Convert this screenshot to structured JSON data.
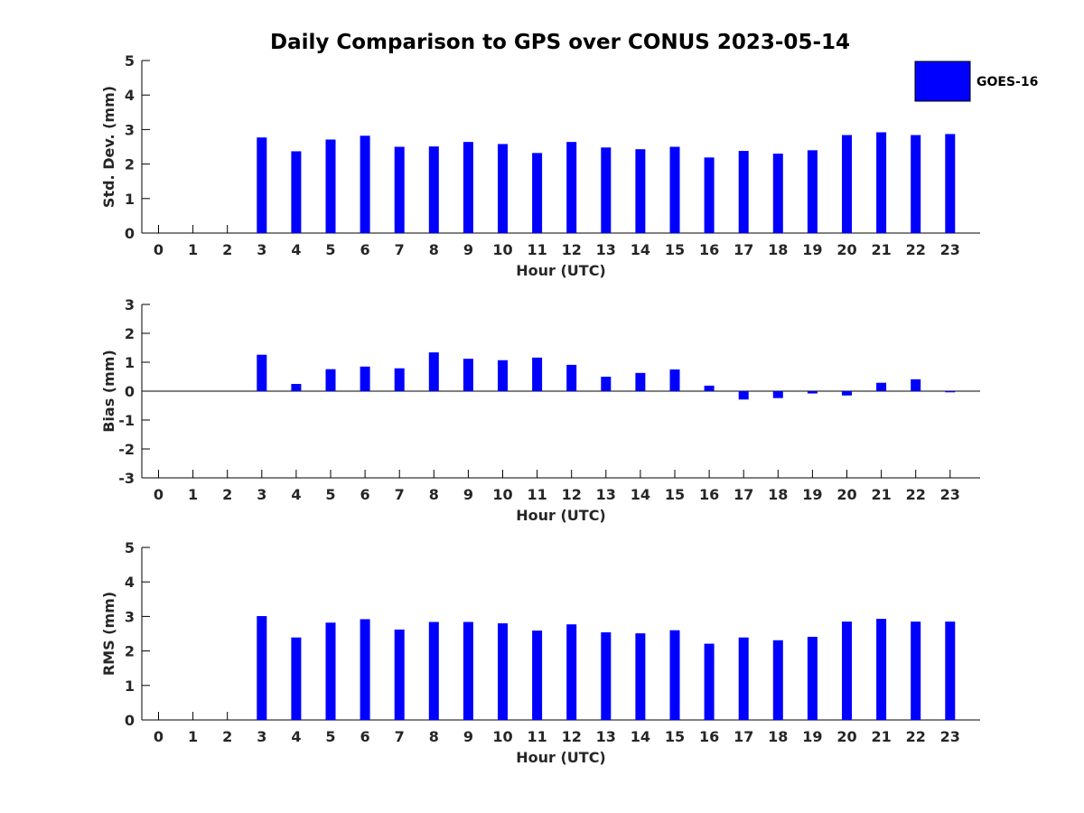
{
  "title": "Daily Comparison to GPS over CONUS 2023-05-14",
  "legend": {
    "label": "GOES-16",
    "color": "#0000ff",
    "placement": "top-right"
  },
  "chart_data": [
    {
      "type": "bar",
      "ylabel": "Std. Dev. (mm)",
      "xlabel": "Hour (UTC)",
      "ylim": [
        0,
        5
      ],
      "yticks": [
        0,
        1,
        2,
        3,
        4,
        5
      ],
      "categories": [
        "0",
        "1",
        "2",
        "3",
        "4",
        "5",
        "6",
        "7",
        "8",
        "9",
        "10",
        "11",
        "12",
        "13",
        "14",
        "15",
        "16",
        "17",
        "18",
        "19",
        "20",
        "21",
        "22",
        "23"
      ],
      "series": [
        {
          "name": "GOES-16",
          "values": [
            null,
            null,
            null,
            2.77,
            2.37,
            2.71,
            2.82,
            2.5,
            2.51,
            2.64,
            2.58,
            2.32,
            2.64,
            2.48,
            2.43,
            2.5,
            2.19,
            2.38,
            2.3,
            2.4,
            2.84,
            2.92,
            2.84,
            2.87
          ]
        }
      ]
    },
    {
      "type": "bar",
      "ylabel": "Bias (mm)",
      "xlabel": "Hour (UTC)",
      "ylim": [
        -3,
        3
      ],
      "yticks": [
        -3,
        -2,
        -1,
        0,
        1,
        2,
        3
      ],
      "categories": [
        "0",
        "1",
        "2",
        "3",
        "4",
        "5",
        "6",
        "7",
        "8",
        "9",
        "10",
        "11",
        "12",
        "13",
        "14",
        "15",
        "16",
        "17",
        "18",
        "19",
        "20",
        "21",
        "22",
        "23"
      ],
      "series": [
        {
          "name": "GOES-16",
          "values": [
            null,
            null,
            null,
            1.26,
            0.25,
            0.76,
            0.85,
            0.79,
            1.34,
            1.12,
            1.07,
            1.16,
            0.91,
            0.5,
            0.63,
            0.75,
            0.19,
            -0.29,
            -0.24,
            -0.08,
            -0.15,
            0.29,
            0.41,
            -0.04
          ]
        }
      ]
    },
    {
      "type": "bar",
      "ylabel": "RMS (mm)",
      "xlabel": "Hour (UTC)",
      "ylim": [
        0,
        5
      ],
      "yticks": [
        0,
        1,
        2,
        3,
        4,
        5
      ],
      "categories": [
        "0",
        "1",
        "2",
        "3",
        "4",
        "5",
        "6",
        "7",
        "8",
        "9",
        "10",
        "11",
        "12",
        "13",
        "14",
        "15",
        "16",
        "17",
        "18",
        "19",
        "20",
        "21",
        "22",
        "23"
      ],
      "series": [
        {
          "name": "GOES-16",
          "values": [
            null,
            null,
            null,
            3.01,
            2.39,
            2.82,
            2.92,
            2.62,
            2.84,
            2.84,
            2.8,
            2.59,
            2.77,
            2.54,
            2.51,
            2.6,
            2.21,
            2.39,
            2.31,
            2.41,
            2.85,
            2.93,
            2.85,
            2.85
          ]
        }
      ]
    }
  ]
}
